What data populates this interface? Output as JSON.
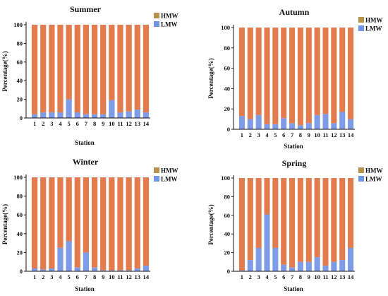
{
  "colors": {
    "hmw": "#E27C4F",
    "lmw": "#7E9BE8",
    "hmw_legend": "#B8914C",
    "lmw_legend": "#6F96E6",
    "axis": "#111111"
  },
  "chart_data": [
    {
      "type": "bar",
      "stacked": true,
      "title": "Summer",
      "xlabel": "Station",
      "ylabel": "Percentage(%)",
      "ylim": [
        0,
        100
      ],
      "yticks": [
        0,
        20,
        40,
        60,
        80,
        100
      ],
      "categories": [
        "1",
        "2",
        "3",
        "4",
        "5",
        "6",
        "7",
        "8",
        "9",
        "10",
        "11",
        "12",
        "13",
        "14"
      ],
      "legend": "top-right",
      "series": [
        {
          "name": "HMW",
          "values": [
            96,
            94,
            94,
            94,
            80,
            94,
            96,
            96,
            96,
            81,
            94,
            93,
            91,
            94
          ]
        },
        {
          "name": "LMW",
          "values": [
            4,
            6,
            6,
            6,
            20,
            6,
            4,
            4,
            4,
            19,
            6,
            7,
            9,
            6
          ]
        }
      ]
    },
    {
      "type": "bar",
      "stacked": true,
      "title": "Autumn",
      "xlabel": "Station",
      "ylabel": "Percentage(%)",
      "ylim": [
        0,
        100
      ],
      "yticks": [
        0,
        20,
        40,
        60,
        80,
        100
      ],
      "categories": [
        "1",
        "2",
        "3",
        "4",
        "5",
        "6",
        "7",
        "8",
        "9",
        "10",
        "11",
        "12",
        "13",
        "14"
      ],
      "legend": "top-right",
      "series": [
        {
          "name": "HMW",
          "values": [
            87,
            90,
            86,
            95,
            95,
            89,
            94,
            96,
            94,
            86,
            85,
            94,
            83,
            90
          ]
        },
        {
          "name": "LMW",
          "values": [
            13,
            10,
            14,
            5,
            5,
            11,
            6,
            4,
            6,
            14,
            15,
            6,
            17,
            10
          ]
        }
      ]
    },
    {
      "type": "bar",
      "stacked": true,
      "title": "Winter",
      "xlabel": "Station",
      "ylabel": "Percentage(%)",
      "ylim": [
        0,
        100
      ],
      "yticks": [
        0,
        20,
        40,
        60,
        80,
        100
      ],
      "categories": [
        "1",
        "2",
        "3",
        "4",
        "5",
        "6",
        "7",
        "8",
        "9",
        "10",
        "11",
        "12",
        "13",
        "14"
      ],
      "legend": "top-right",
      "series": [
        {
          "name": "HMW",
          "values": [
            97,
            98,
            97,
            75,
            68,
            96,
            80,
            96,
            99,
            99,
            99,
            99,
            97,
            94
          ]
        },
        {
          "name": "LMW",
          "values": [
            3,
            2,
            3,
            25,
            32,
            4,
            20,
            4,
            1,
            1,
            1,
            1,
            3,
            6
          ]
        }
      ]
    },
    {
      "type": "bar",
      "stacked": true,
      "title": "Spring",
      "xlabel": "Station",
      "ylabel": "Percentage(%)",
      "ylim": [
        0,
        100
      ],
      "yticks": [
        0,
        20,
        40,
        60,
        80,
        100
      ],
      "categories": [
        "1",
        "2",
        "3",
        "4",
        "5",
        "6",
        "7",
        "8",
        "9",
        "10",
        "11",
        "12",
        "13",
        "14"
      ],
      "legend": "top-right",
      "series": [
        {
          "name": "HMW",
          "values": [
            99,
            88,
            75,
            39,
            75,
            93,
            96,
            90,
            90,
            85,
            94,
            90,
            88,
            75
          ]
        },
        {
          "name": "LMW",
          "values": [
            1,
            12,
            25,
            61,
            25,
            7,
            4,
            10,
            10,
            15,
            6,
            10,
            12,
            25
          ]
        }
      ]
    }
  ]
}
